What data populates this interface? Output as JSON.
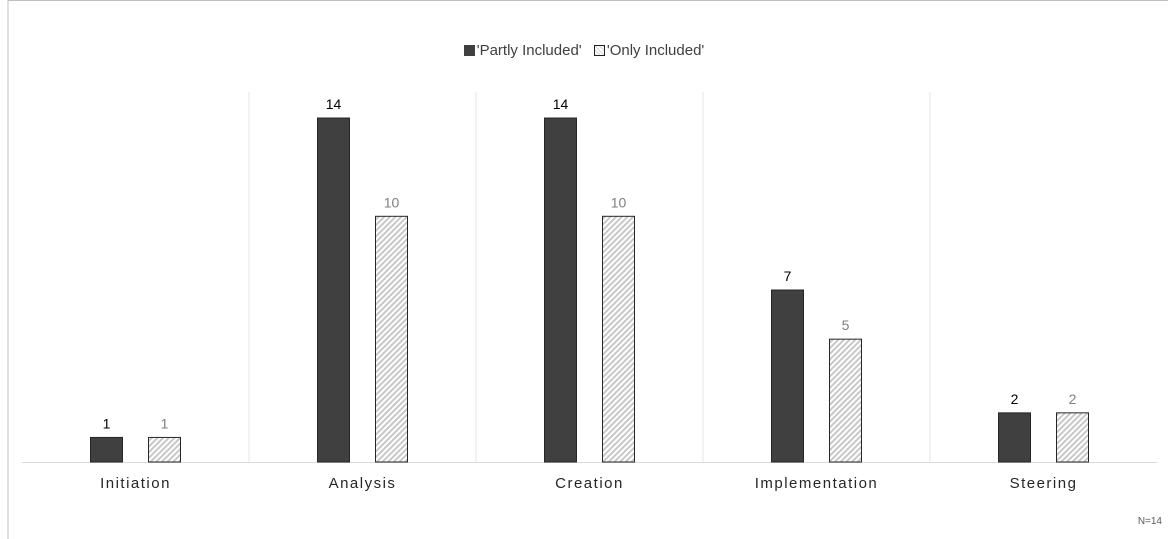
{
  "chart_data": {
    "type": "bar",
    "categories": [
      "Initiation",
      "Analysis",
      "Creation",
      "Implementation",
      "Steering"
    ],
    "series": [
      {
        "name": "'Partly Included'",
        "values": [
          1,
          14,
          14,
          7,
          2
        ],
        "color": "#404040",
        "pattern": "solid",
        "label_color": "#000000"
      },
      {
        "name": "'Only Included'",
        "values": [
          1,
          10,
          10,
          5,
          2
        ],
        "color": "#d9d9d9",
        "pattern": "diagonal-hatch",
        "label_color": "#7f7f7f"
      }
    ],
    "ylim": [
      0,
      15
    ],
    "legend_position": "top-center",
    "grid": "vertical category separators",
    "note": "N=14"
  }
}
